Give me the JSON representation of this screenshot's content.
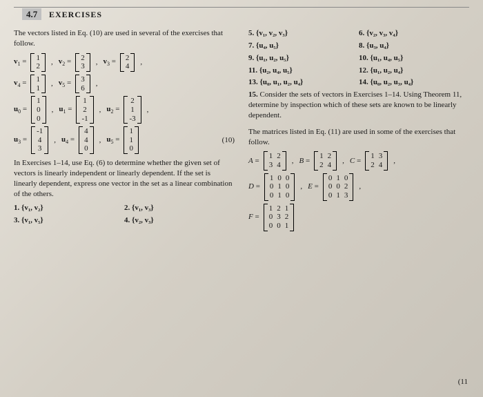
{
  "header": {
    "section_number": "4.7",
    "section_title": "EXERCISES"
  },
  "left": {
    "intro": "The vectors listed in Eq. (10) are used in several of the exercises that follow.",
    "v_labels": {
      "v1": "v",
      "v2": "v",
      "v3": "v",
      "v4": "v",
      "v5": "v",
      "u0": "u",
      "u1": "u",
      "u2": "u",
      "u3": "u",
      "u4": "u",
      "u5": "u"
    },
    "v1": [
      "1",
      "2"
    ],
    "v2": [
      "2",
      "3"
    ],
    "v3": [
      "2",
      "4"
    ],
    "v4": [
      "1",
      "1"
    ],
    "v5": [
      "3",
      "6"
    ],
    "u0": [
      "1",
      "0",
      "0"
    ],
    "u1": [
      "1",
      "2",
      "-1"
    ],
    "u2": [
      "2",
      "1",
      "-3"
    ],
    "u3": [
      "-1",
      "4",
      "3"
    ],
    "u4": [
      "4",
      "4",
      "0"
    ],
    "u5": [
      "1",
      "1",
      "0"
    ],
    "eqnum": "(10)",
    "ex_intro": "In Exercises 1–14, use Eq. (6) to determine whether the given set of vectors is linearly independent or linearly dependent. If the set is linearly dependent, express one vector in the set as a linear combination of the others.",
    "ex1": "1. {v₁, v₂}",
    "ex2": "2. {v₁, v₃}",
    "ex3": "3. {v₁, v₅}",
    "ex4": "4. {v₂, v₃}"
  },
  "right": {
    "items": [
      "5. {v₁, v₂, v₃}",
      "6. {v₂, v₃, v₄}",
      "7. {u₄, u₅}",
      "8. {u₃, u₄}",
      "9. {u₁, u₂, u₅}",
      "10. {u₁, u₄, u₅}",
      "11. {u₂, u₄, u₅}",
      "12. {u₁, u₂, u₄}",
      "13. {u₀, u₁, u₂, u₄}",
      "14. {u₀, u₂, u₃, u₄}"
    ],
    "item15": "15. Consider the sets of vectors in Exercises 1–14. Using Theorem 11, determine by inspection which of these sets are known to be linearly dependent.",
    "mat_intro": "The matrices listed in Eq. (11) are used in some of the exercises that follow.",
    "A": [
      [
        "1",
        "2"
      ],
      [
        "3",
        "4"
      ]
    ],
    "B": [
      [
        "1",
        "2"
      ],
      [
        "2",
        "4"
      ]
    ],
    "C": [
      [
        "1",
        "3"
      ],
      [
        "2",
        "4"
      ]
    ],
    "D": [
      [
        "1",
        "0",
        "0"
      ],
      [
        "0",
        "1",
        "0"
      ],
      [
        "0",
        "1",
        "0"
      ]
    ],
    "E": [
      [
        "0",
        "1",
        "0"
      ],
      [
        "0",
        "0",
        "2"
      ],
      [
        "0",
        "1",
        "3"
      ]
    ],
    "F": [
      [
        "1",
        "2",
        "1"
      ],
      [
        "0",
        "3",
        "2"
      ],
      [
        "0",
        "0",
        "1"
      ]
    ],
    "eqnum": "(11"
  }
}
